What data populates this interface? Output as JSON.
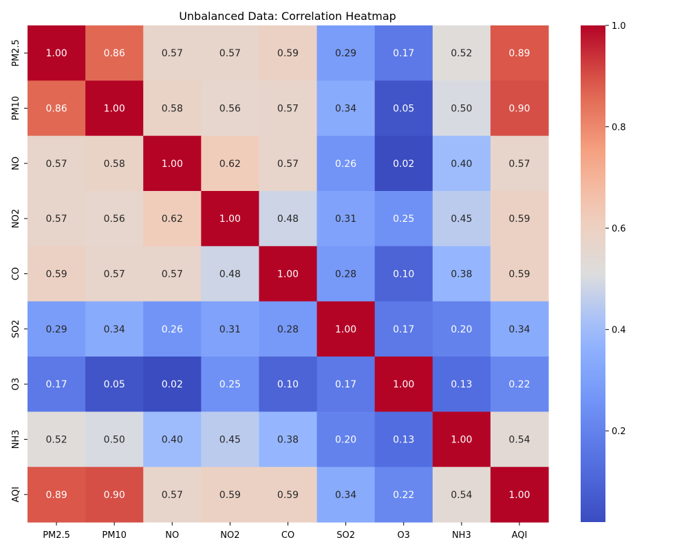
{
  "chart_data": {
    "type": "heatmap",
    "title": "Unbalanced Data: Correlation Heatmap",
    "xlabel": "",
    "ylabel": "",
    "labels": [
      "PM2.5",
      "PM10",
      "NO",
      "NO2",
      "CO",
      "SO2",
      "O3",
      "NH3",
      "AQI"
    ],
    "matrix": [
      [
        1.0,
        0.86,
        0.57,
        0.57,
        0.59,
        0.29,
        0.17,
        0.52,
        0.89
      ],
      [
        0.86,
        1.0,
        0.58,
        0.56,
        0.57,
        0.34,
        0.05,
        0.5,
        0.9
      ],
      [
        0.57,
        0.58,
        1.0,
        0.62,
        0.57,
        0.26,
        0.02,
        0.4,
        0.57
      ],
      [
        0.57,
        0.56,
        0.62,
        1.0,
        0.48,
        0.31,
        0.25,
        0.45,
        0.59
      ],
      [
        0.59,
        0.57,
        0.57,
        0.48,
        1.0,
        0.28,
        0.1,
        0.38,
        0.59
      ],
      [
        0.29,
        0.34,
        0.26,
        0.31,
        0.28,
        1.0,
        0.17,
        0.2,
        0.34
      ],
      [
        0.17,
        0.05,
        0.02,
        0.25,
        0.1,
        0.17,
        1.0,
        0.13,
        0.22
      ],
      [
        0.52,
        0.5,
        0.4,
        0.45,
        0.38,
        0.2,
        0.13,
        1.0,
        0.54
      ],
      [
        0.89,
        0.9,
        0.57,
        0.59,
        0.59,
        0.34,
        0.22,
        0.54,
        1.0
      ]
    ],
    "value_format": "2 decimals",
    "colormap": "coolwarm",
    "colorbar": {
      "range": [
        0.02,
        1.0
      ],
      "ticks": [
        0.2,
        0.4,
        0.6,
        0.8,
        1.0
      ],
      "tick_labels": [
        "0.2",
        "0.4",
        "0.6",
        "0.8",
        "1.0"
      ]
    },
    "grid": false
  }
}
